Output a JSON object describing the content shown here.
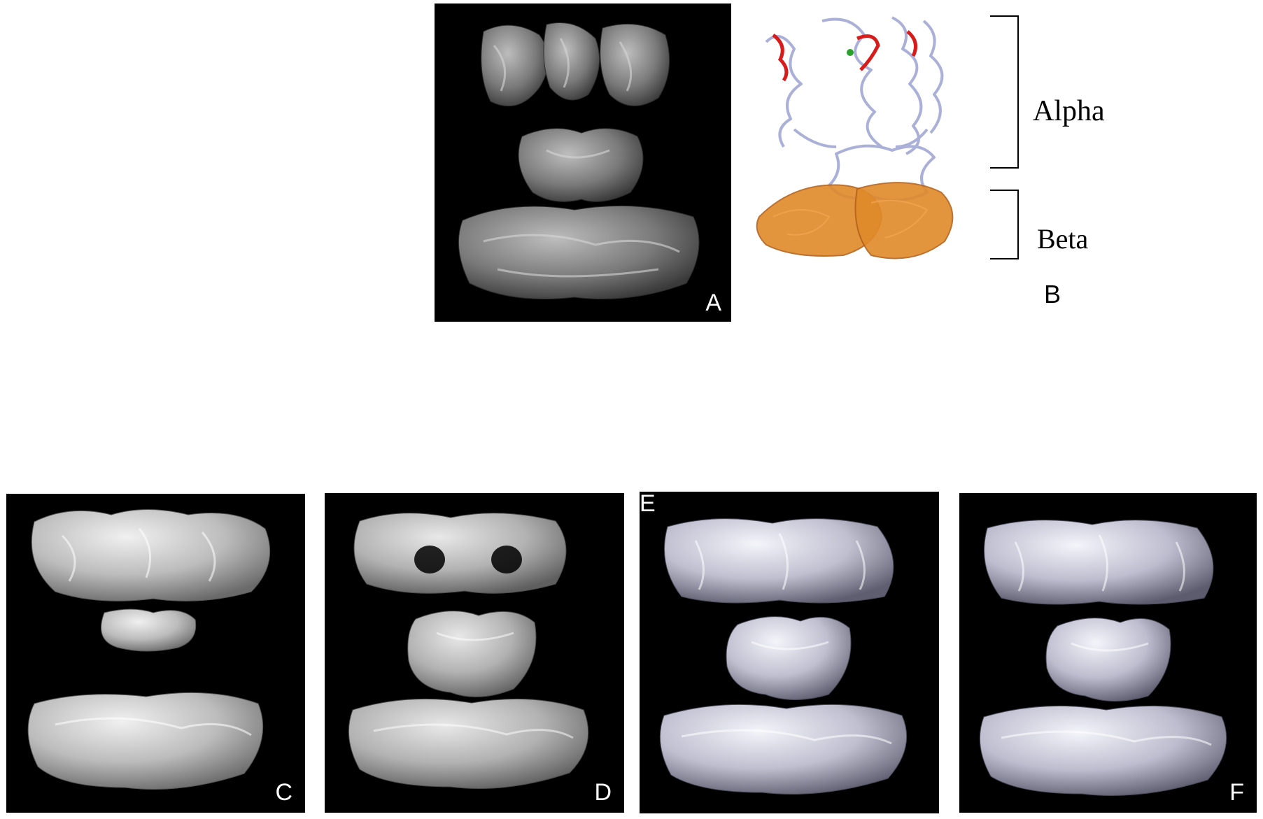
{
  "panels": {
    "a": {
      "letter": "A"
    },
    "b": {
      "letter": "B",
      "alpha_label": "Alpha",
      "beta_label": "Beta"
    },
    "c": {
      "letter": "C"
    },
    "d": {
      "letter": "D"
    },
    "e": {
      "letter": "E"
    },
    "f": {
      "letter": "F"
    }
  },
  "colors": {
    "background": "#000000",
    "density_gray": "#8e8e8e",
    "density_light": "#c8c8c8",
    "density_lavender": "#bfbfd0",
    "alpha_chain": "#aab0d8",
    "beta_chain": "#e08a2a",
    "highlight_red": "#d81b1b",
    "ligand_green": "#2ca02c"
  }
}
